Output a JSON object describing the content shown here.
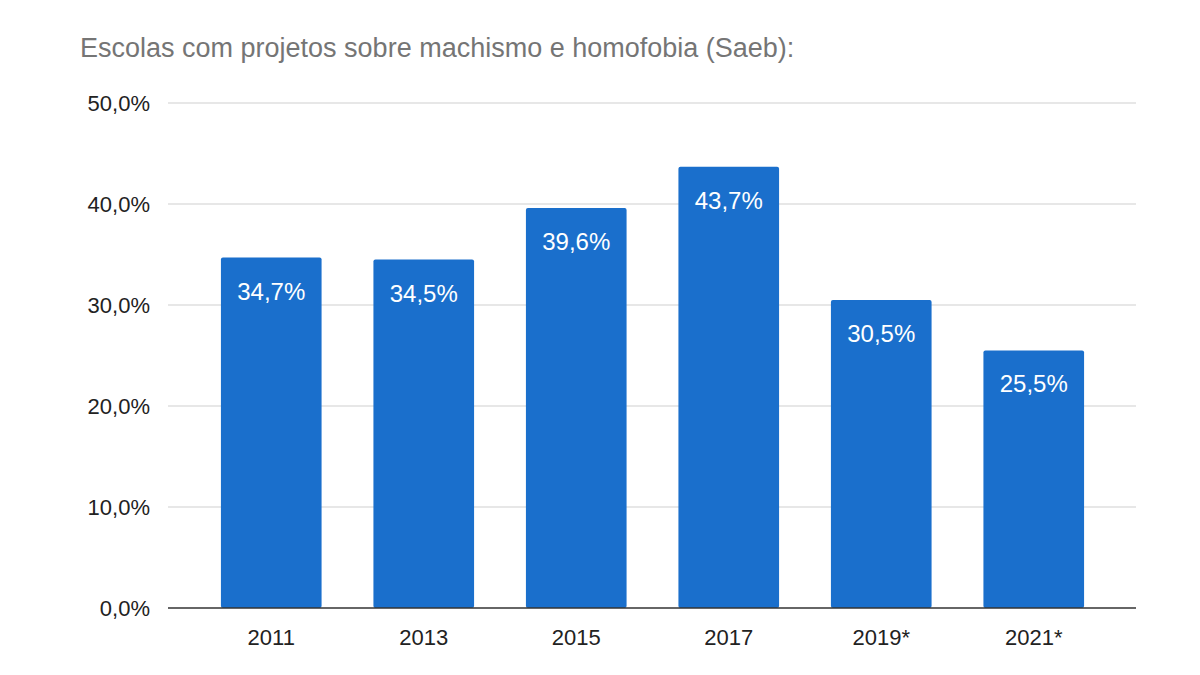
{
  "chart_data": {
    "type": "bar",
    "title": "Escolas com projetos sobre machismo e homofobia (Saeb):",
    "categories": [
      "2011",
      "2013",
      "2015",
      "2017",
      "2019*",
      "2021*"
    ],
    "values": [
      34.7,
      34.5,
      39.6,
      43.7,
      30.5,
      25.5
    ],
    "value_labels": [
      "34,7%",
      "34,5%",
      "39,6%",
      "43,7%",
      "30,5%",
      "25,5%"
    ],
    "color": "#1a6fcc",
    "ylim": [
      0,
      50
    ],
    "yticks": [
      {
        "value": 0,
        "label": "0,0%"
      },
      {
        "value": 10,
        "label": "10,0%"
      },
      {
        "value": 20,
        "label": "20,0%"
      },
      {
        "value": 30,
        "label": "30,0%"
      },
      {
        "value": 40,
        "label": "40,0%"
      },
      {
        "value": 50,
        "label": "50,0%"
      }
    ],
    "grid": true,
    "data_labels": true
  }
}
